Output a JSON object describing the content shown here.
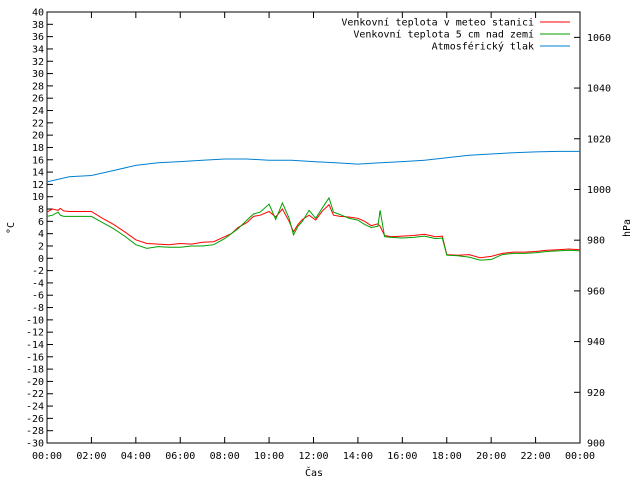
{
  "chart_data": {
    "type": "line",
    "title": "",
    "xlabel": "Čas",
    "ylabel": "°C",
    "y2label": "hPa",
    "ylim": [
      -30,
      40
    ],
    "y2lim": [
      900,
      1070
    ],
    "xlim_hours": [
      0,
      24
    ],
    "grid": false,
    "legend": "top-right",
    "x_ticks": [
      "00:00",
      "02:00",
      "04:00",
      "06:00",
      "08:00",
      "10:00",
      "12:00",
      "14:00",
      "16:00",
      "18:00",
      "20:00",
      "22:00",
      "00:00"
    ],
    "y_ticks": [
      40,
      38,
      36,
      34,
      32,
      30,
      28,
      26,
      24,
      22,
      20,
      18,
      16,
      14,
      12,
      10,
      8,
      6,
      4,
      2,
      0,
      -2,
      -4,
      -6,
      -8,
      -10,
      -12,
      -14,
      -16,
      -18,
      -20,
      -22,
      -24,
      -26,
      -28,
      -30
    ],
    "y2_ticks": [
      1060,
      1040,
      1020,
      1000,
      980,
      960,
      940,
      920,
      900
    ],
    "series": [
      {
        "name": "Venkovní teplota v meteo stanici",
        "color": "#ff0000",
        "axis": "left",
        "x": [
          0,
          0.25,
          0.5,
          0.6,
          0.75,
          1.0,
          1.5,
          2.0,
          2.5,
          3.0,
          3.5,
          4.0,
          4.5,
          5.0,
          5.5,
          6.0,
          6.5,
          7.0,
          7.5,
          8.0,
          8.3,
          8.6,
          9.0,
          9.3,
          9.6,
          10.0,
          10.3,
          10.6,
          10.9,
          11.1,
          11.3,
          11.5,
          11.8,
          12.1,
          12.4,
          12.7,
          12.9,
          13.2,
          13.6,
          14.0,
          14.3,
          14.6,
          14.9,
          15.0,
          15.2,
          15.5,
          16.0,
          16.5,
          17.0,
          17.5,
          17.8,
          18.0,
          18.5,
          19.0,
          19.5,
          20.0,
          20.5,
          21.0,
          21.5,
          22.0,
          22.5,
          23.0,
          23.5,
          24.0
        ],
        "values": [
          7.5,
          8.0,
          7.8,
          8.1,
          7.7,
          7.6,
          7.6,
          7.6,
          6.5,
          5.5,
          4.3,
          3.0,
          2.4,
          2.3,
          2.2,
          2.4,
          2.3,
          2.6,
          2.7,
          3.5,
          4.0,
          5.0,
          5.8,
          6.8,
          7.0,
          7.6,
          6.7,
          8.0,
          6.0,
          4.3,
          5.5,
          6.3,
          7.0,
          6.2,
          7.7,
          8.7,
          7.0,
          6.8,
          6.7,
          6.5,
          6.0,
          5.3,
          5.6,
          5.2,
          3.7,
          3.5,
          3.6,
          3.7,
          3.9,
          3.5,
          3.6,
          0.6,
          0.5,
          0.6,
          0.1,
          0.3,
          0.8,
          1.0,
          1.0,
          1.1,
          1.3,
          1.4,
          1.5,
          1.4
        ]
      },
      {
        "name": "Venkovní teplota 5 cm nad zemí",
        "color": "#00a000",
        "axis": "left",
        "x": [
          0,
          0.25,
          0.5,
          0.6,
          0.75,
          1.0,
          1.5,
          2.0,
          2.5,
          3.0,
          3.5,
          4.0,
          4.5,
          5.0,
          5.5,
          6.0,
          6.5,
          7.0,
          7.5,
          8.0,
          8.3,
          8.6,
          9.0,
          9.3,
          9.6,
          10.0,
          10.3,
          10.6,
          10.9,
          11.1,
          11.3,
          11.5,
          11.8,
          12.1,
          12.4,
          12.7,
          12.9,
          13.2,
          13.6,
          14.0,
          14.3,
          14.6,
          14.9,
          15.0,
          15.2,
          15.5,
          16.0,
          16.5,
          17.0,
          17.5,
          17.8,
          18.0,
          18.5,
          19.0,
          19.5,
          20.0,
          20.5,
          21.0,
          21.5,
          22.0,
          22.5,
          23.0,
          23.5,
          24.0
        ],
        "values": [
          6.8,
          7.0,
          7.5,
          7.0,
          6.8,
          6.8,
          6.8,
          6.8,
          5.8,
          4.8,
          3.6,
          2.2,
          1.6,
          1.9,
          1.8,
          1.8,
          2.0,
          2.0,
          2.2,
          3.2,
          4.0,
          4.8,
          6.2,
          7.2,
          7.5,
          8.8,
          6.3,
          9.0,
          6.5,
          3.8,
          5.2,
          6.0,
          7.8,
          6.5,
          8.2,
          9.8,
          7.5,
          7.1,
          6.5,
          6.2,
          5.5,
          5.0,
          5.2,
          7.8,
          3.5,
          3.4,
          3.3,
          3.4,
          3.6,
          3.2,
          3.3,
          0.5,
          0.4,
          0.2,
          -0.3,
          -0.2,
          0.6,
          0.8,
          0.8,
          0.9,
          1.1,
          1.2,
          1.3,
          1.2
        ]
      },
      {
        "name": "Atmosférický tlak",
        "color": "#0080d0",
        "axis": "right",
        "x": [
          0,
          1,
          2,
          3,
          4,
          5,
          6,
          7,
          8,
          9,
          10,
          11,
          12,
          13,
          14,
          15,
          16,
          17,
          18,
          19,
          20,
          21,
          22,
          23,
          24
        ],
        "values": [
          1003,
          1005,
          1005.5,
          1007.5,
          1009.5,
          1010.5,
          1011,
          1011.5,
          1012,
          1012,
          1011.5,
          1011.5,
          1011,
          1010.5,
          1010,
          1010.5,
          1011,
          1011.5,
          1012.5,
          1013.5,
          1014,
          1014.5,
          1014.8,
          1015,
          1015
        ]
      }
    ]
  }
}
